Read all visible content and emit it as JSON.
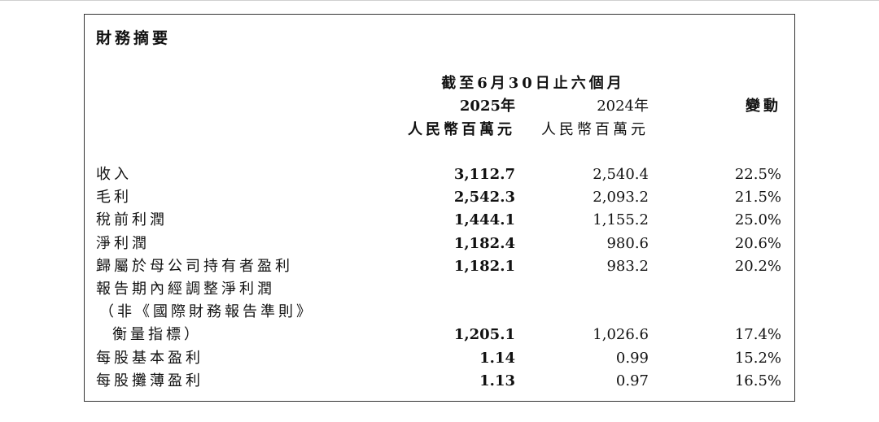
{
  "header": {
    "title": "財務摘要"
  },
  "table": {
    "period": "截至6月30日止六個月",
    "columns": [
      {
        "year": "2025年",
        "unit": "人民幣百萬元"
      },
      {
        "year": "2024年",
        "unit": "人民幣百萬元"
      },
      {
        "year": "變動"
      }
    ],
    "rows": [
      {
        "label": [
          "收入"
        ],
        "cells": [
          "3,112.7",
          "2,540.4",
          "22.5%"
        ]
      },
      {
        "label": [
          "毛利"
        ],
        "cells": [
          "2,542.3",
          "2,093.2",
          "21.5%"
        ]
      },
      {
        "label": [
          "稅前利潤"
        ],
        "cells": [
          "1,444.1",
          "1,155.2",
          "25.0%"
        ]
      },
      {
        "label": [
          "淨利潤"
        ],
        "cells": [
          "1,182.4",
          "980.6",
          "20.6%"
        ]
      },
      {
        "label": [
          "歸屬於母公司持有者盈利"
        ],
        "cells": [
          "1,182.1",
          "983.2",
          "20.2%"
        ]
      },
      {
        "label": [
          "報告期內經調整淨利潤",
          "（非《國際財務報告準則》",
          "衡量指標）"
        ],
        "cells": [
          "1,205.1",
          "1,026.6",
          "17.4%"
        ]
      },
      {
        "label": [
          "每股基本盈利"
        ],
        "cells": [
          "1.14",
          "0.99",
          "15.2%"
        ]
      },
      {
        "label": [
          "每股攤薄盈利"
        ],
        "cells": [
          "1.13",
          "0.97",
          "16.5%"
        ]
      }
    ]
  }
}
